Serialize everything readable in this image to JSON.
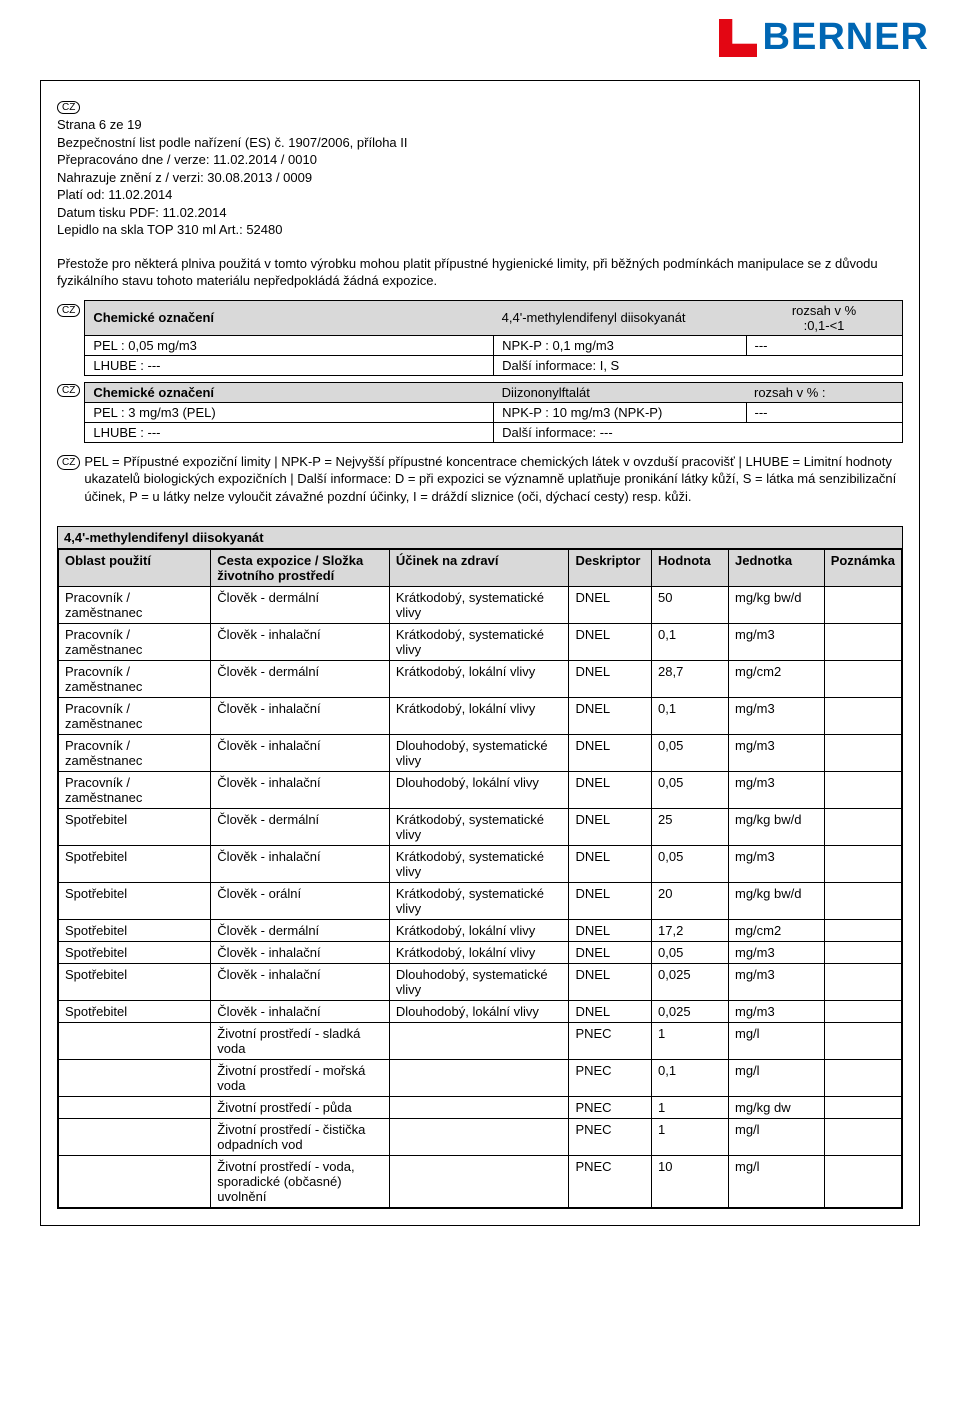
{
  "logo": {
    "text": "BERNER",
    "brand_color": "#0066b3",
    "accent_color": "#e30613"
  },
  "cz_badge": "CZ",
  "header": {
    "line1": "Strana 6 ze 19",
    "line2": "Bezpečnostní list podle nařízení (ES) č. 1907/2006, příloha II",
    "line3": "Přepracováno dne / verze: 11.02.2014  / 0010",
    "line4": "Nahrazuje znění z / verzi: 30.08.2013  / 0009",
    "line5": "Platí od: 11.02.2014",
    "line6": "Datum tisku PDF: 11.02.2014",
    "line7": "Lepidlo na skla TOP 310 ml Art.: 52480"
  },
  "intro": "Přestože pro některá plniva použitá v tomto výrobku mohou platit přípustné hygienické limity, při běžných podmínkách manipulace se z důvodu fyzikálního stavu tohoto materiálu nepředpokládá žádná expozice.",
  "chem1": {
    "label": "Chemické označení",
    "name": "4,4'-methylendifenyl diisokyanát",
    "range_label": "rozsah v %",
    "range_value": ":0,1-<1",
    "pel": "PEL :   0,05 mg/m3",
    "npk": "NPK-P :   0,1 mg/m3",
    "dash": "---",
    "lhube": "LHUBE :   ---",
    "info": "Další informace:   I, S"
  },
  "chem2": {
    "label": "Chemické označení",
    "name": "Diizononylftalát",
    "range": "rozsah v % :",
    "pel": "PEL :   3 mg/m3 (PEL)",
    "npk": "NPK-P :   10 mg/m3 (NPK-P)",
    "dash": "---",
    "lhube": "LHUBE :   ---",
    "info": "Další informace:   ---"
  },
  "legend": " PEL = Přípustné expoziční limity | NPK-P = Nejvyšší přípustné koncentrace chemických látek v ovzduší pracovišť | LHUBE = Limitní hodnoty ukazatelů biologických expozičních | Další informace: D = při expozici se významně uplatňuje pronikání látky kůží, S = látka má senzibilizační účinek, P = u látky nelze vyloučit závažné pozdní účinky, I = dráždí sliznice (oči, dýchací cesty) resp. kůži.",
  "dnel": {
    "title": "4,4'-methylendifenyl diisokyanát",
    "headers": {
      "area": "Oblast použití",
      "route": "Cesta expozice / Složka životního prostředí",
      "effect": "Účinek na zdraví",
      "desc": "Deskriptor",
      "val": "Hodnota",
      "unit": "Jednotka",
      "note": "Poznámka"
    },
    "rows": [
      {
        "area": "Pracovník / zaměstnanec",
        "route": "Člověk - dermální",
        "effect": "Krátkodobý, systematické vlivy",
        "desc": "DNEL",
        "val": "50",
        "unit": "mg/kg bw/d",
        "note": ""
      },
      {
        "area": "Pracovník / zaměstnanec",
        "route": "Člověk - inhalační",
        "effect": "Krátkodobý, systematické vlivy",
        "desc": "DNEL",
        "val": "0,1",
        "unit": "mg/m3",
        "note": ""
      },
      {
        "area": "Pracovník / zaměstnanec",
        "route": "Člověk - dermální",
        "effect": "Krátkodobý, lokální vlivy",
        "desc": "DNEL",
        "val": "28,7",
        "unit": "mg/cm2",
        "note": ""
      },
      {
        "area": "Pracovník / zaměstnanec",
        "route": "Člověk - inhalační",
        "effect": "Krátkodobý, lokální vlivy",
        "desc": "DNEL",
        "val": "0,1",
        "unit": "mg/m3",
        "note": ""
      },
      {
        "area": "Pracovník / zaměstnanec",
        "route": "Člověk - inhalační",
        "effect": "Dlouhodobý, systematické vlivy",
        "desc": "DNEL",
        "val": "0,05",
        "unit": "mg/m3",
        "note": ""
      },
      {
        "area": "Pracovník / zaměstnanec",
        "route": "Člověk - inhalační",
        "effect": "Dlouhodobý, lokální vlivy",
        "desc": "DNEL",
        "val": "0,05",
        "unit": "mg/m3",
        "note": ""
      },
      {
        "area": "Spotřebitel",
        "route": "Člověk - dermální",
        "effect": "Krátkodobý, systematické vlivy",
        "desc": "DNEL",
        "val": "25",
        "unit": "mg/kg bw/d",
        "note": ""
      },
      {
        "area": "Spotřebitel",
        "route": "Člověk - inhalační",
        "effect": "Krátkodobý, systematické vlivy",
        "desc": "DNEL",
        "val": "0,05",
        "unit": "mg/m3",
        "note": ""
      },
      {
        "area": "Spotřebitel",
        "route": "Člověk - orální",
        "effect": "Krátkodobý, systematické vlivy",
        "desc": "DNEL",
        "val": "20",
        "unit": "mg/kg bw/d",
        "note": ""
      },
      {
        "area": "Spotřebitel",
        "route": "Člověk - dermální",
        "effect": "Krátkodobý, lokální vlivy",
        "desc": "DNEL",
        "val": "17,2",
        "unit": "mg/cm2",
        "note": ""
      },
      {
        "area": "Spotřebitel",
        "route": "Člověk - inhalační",
        "effect": "Krátkodobý, lokální vlivy",
        "desc": "DNEL",
        "val": "0,05",
        "unit": "mg/m3",
        "note": ""
      },
      {
        "area": "Spotřebitel",
        "route": "Člověk - inhalační",
        "effect": "Dlouhodobý, systematické vlivy",
        "desc": "DNEL",
        "val": "0,025",
        "unit": "mg/m3",
        "note": ""
      },
      {
        "area": "Spotřebitel",
        "route": "Člověk - inhalační",
        "effect": "Dlouhodobý, lokální vlivy",
        "desc": "DNEL",
        "val": "0,025",
        "unit": "mg/m3",
        "note": ""
      },
      {
        "area": "",
        "route": "Životní prostředí - sladká voda",
        "effect": "",
        "desc": "PNEC",
        "val": "1",
        "unit": "mg/l",
        "note": ""
      },
      {
        "area": "",
        "route": "Životní prostředí - mořská voda",
        "effect": "",
        "desc": "PNEC",
        "val": "0,1",
        "unit": "mg/l",
        "note": ""
      },
      {
        "area": "",
        "route": "Životní prostředí - půda",
        "effect": "",
        "desc": "PNEC",
        "val": "1",
        "unit": "mg/kg dw",
        "note": ""
      },
      {
        "area": "",
        "route": "Životní prostředí - čistička odpadních vod",
        "effect": "",
        "desc": "PNEC",
        "val": "1",
        "unit": "mg/l",
        "note": ""
      },
      {
        "area": "",
        "route": "Životní prostředí - voda, sporadické (občasné) uvolnění",
        "effect": "",
        "desc": "PNEC",
        "val": "10",
        "unit": "mg/l",
        "note": ""
      }
    ]
  }
}
